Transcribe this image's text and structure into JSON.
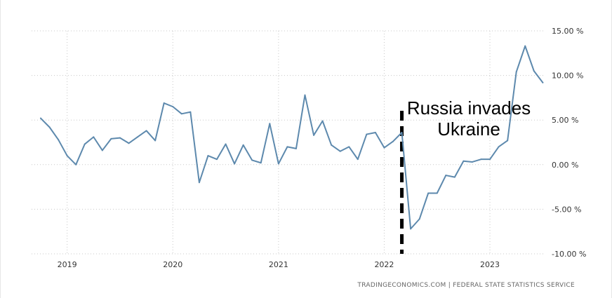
{
  "chart_data": {
    "type": "line",
    "x": [
      "2018-10",
      "2018-11",
      "2018-12",
      "2019-01",
      "2019-02",
      "2019-03",
      "2019-04",
      "2019-05",
      "2019-06",
      "2019-07",
      "2019-08",
      "2019-09",
      "2019-10",
      "2019-11",
      "2019-12",
      "2020-01",
      "2020-02",
      "2020-03",
      "2020-04",
      "2020-05",
      "2020-06",
      "2020-07",
      "2020-08",
      "2020-09",
      "2020-10",
      "2020-11",
      "2020-12",
      "2021-01",
      "2021-02",
      "2021-03",
      "2021-04",
      "2021-05",
      "2021-06",
      "2021-07",
      "2021-08",
      "2021-09",
      "2021-10",
      "2021-11",
      "2021-12",
      "2022-01",
      "2022-02",
      "2022-03",
      "2022-04",
      "2022-05",
      "2022-06",
      "2022-07",
      "2022-08",
      "2022-09",
      "2022-10",
      "2022-11",
      "2022-12",
      "2023-01",
      "2023-02",
      "2023-03",
      "2023-04",
      "2023-05",
      "2023-06",
      "2023-07"
    ],
    "series": [
      {
        "color": "#5d89ad",
        "values": [
          5.2,
          4.2,
          2.8,
          1.0,
          0.0,
          2.3,
          3.1,
          1.6,
          2.9,
          3.0,
          2.4,
          3.1,
          3.8,
          2.7,
          6.9,
          6.5,
          5.7,
          5.9,
          -2.0,
          1.0,
          0.6,
          2.3,
          0.1,
          2.2,
          0.5,
          0.2,
          4.6,
          0.1,
          2.0,
          1.8,
          7.8,
          3.3,
          4.9,
          2.2,
          1.5,
          2.0,
          0.6,
          3.4,
          3.6,
          1.9,
          2.6,
          3.6,
          -7.2,
          -6.1,
          -3.2,
          -3.2,
          -1.2,
          -1.4,
          0.4,
          0.3,
          0.6,
          0.6,
          2.0,
          2.7,
          10.4,
          13.3,
          10.5,
          9.2
        ]
      }
    ],
    "ylim": [
      -10,
      15
    ],
    "yticks": [
      "15.00 %",
      "10.00 %",
      "5.00 %",
      "0.00 %",
      "-5.00 %",
      "-10.00 %"
    ],
    "ytick_values": [
      15,
      10,
      5,
      0,
      -5,
      -10
    ],
    "xticks": [
      "2019",
      "2020",
      "2021",
      "2022",
      "2023"
    ],
    "xtick_values": [
      "2019-01",
      "2020-01",
      "2021-01",
      "2022-01",
      "2023-01"
    ],
    "grid": true,
    "annotation": {
      "text_line1": "Russia invades",
      "text_line2": "Ukraine",
      "at": "2022-03",
      "line_color": "#000000"
    },
    "source": "TRADINGECONOMICS.COM  |  FEDERAL STATE STATISTICS SERVICE"
  }
}
